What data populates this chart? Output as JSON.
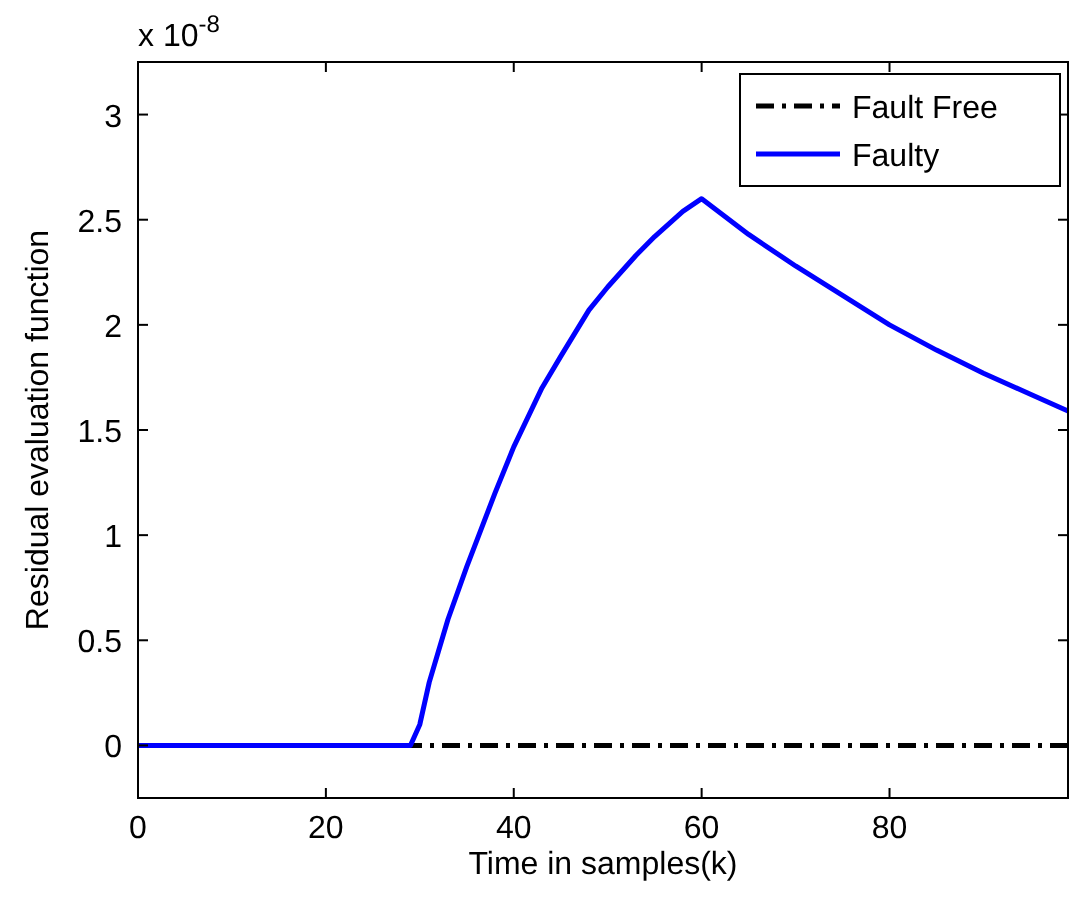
{
  "chart_data": {
    "type": "line",
    "xlabel": "Time in samples(k)",
    "ylabel": "Residual evaluation function",
    "annotations": [
      "x 10$^{-8}$"
    ],
    "xlim": [
      0,
      99
    ],
    "xticks": [
      0,
      20,
      40,
      60,
      80
    ],
    "ylim": [
      -0.25,
      3.25
    ],
    "yticks": [
      0,
      0.5,
      1,
      1.5,
      2,
      2.5,
      3
    ],
    "grid": false,
    "legend": "top right",
    "series": [
      {
        "name": "Fault Free",
        "color": "#000000",
        "line_style": "dashdot",
        "x": [
          0,
          99
        ],
        "values": [
          0,
          0
        ]
      },
      {
        "name": "Faulty",
        "color": "#0000ff",
        "line_style": "solid",
        "x": [
          0,
          29,
          30,
          31,
          32,
          33,
          35,
          38,
          40,
          43,
          45,
          48,
          50,
          53,
          55,
          58,
          60,
          65,
          70,
          75,
          80,
          85,
          90,
          95,
          99
        ],
        "values": [
          0,
          0,
          0.1,
          0.3,
          0.45,
          0.6,
          0.85,
          1.2,
          1.42,
          1.7,
          1.85,
          2.07,
          2.18,
          2.33,
          2.42,
          2.54,
          2.6,
          2.43,
          2.28,
          2.14,
          2,
          1.88,
          1.77,
          1.67,
          1.59
        ]
      }
    ]
  }
}
